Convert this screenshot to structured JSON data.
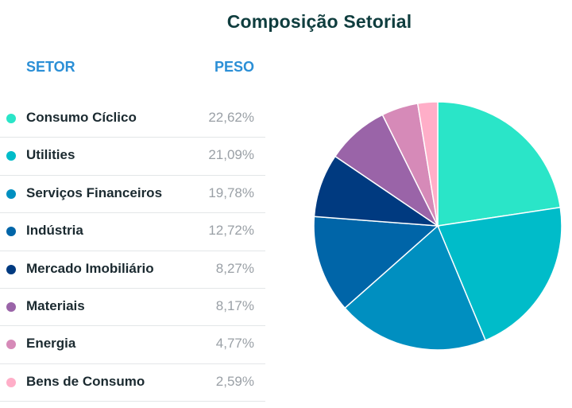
{
  "title": "Composição Setorial",
  "table": {
    "header_sector": "SETOR",
    "header_weight": "PESO"
  },
  "chart_data": {
    "type": "pie",
    "title": "Composição Setorial",
    "slices": [
      {
        "label": "Consumo Cíclico",
        "value": 22.62,
        "display": "22,62%",
        "color": "#2ae5c8"
      },
      {
        "label": "Utilities",
        "value": 21.09,
        "display": "21,09%",
        "color": "#00bcc9"
      },
      {
        "label": "Serviços Financeiros",
        "value": 19.78,
        "display": "19,78%",
        "color": "#008fc0"
      },
      {
        "label": "Indústria",
        "value": 12.72,
        "display": "12,72%",
        "color": "#0065a8"
      },
      {
        "label": "Mercado Imobiliário",
        "value": 8.27,
        "display": "8,27%",
        "color": "#003a80"
      },
      {
        "label": "Materiais",
        "value": 8.17,
        "display": "8,17%",
        "color": "#9a64a8"
      },
      {
        "label": "Energia",
        "value": 4.77,
        "display": "4,77%",
        "color": "#d68ab8"
      },
      {
        "label": "Bens de Consumo",
        "value": 2.59,
        "display": "2,59%",
        "color": "#ffaec8"
      }
    ]
  }
}
